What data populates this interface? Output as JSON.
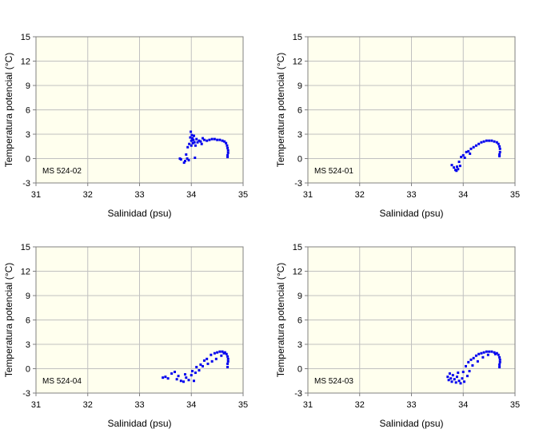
{
  "colors": {
    "plot_background": "#ffffee",
    "grid": "#c0c0c0",
    "axis": "#808080",
    "points": "#0000ee"
  },
  "chart_data": [
    {
      "type": "scatter",
      "station": "MS 524-02",
      "xlabel": "Salinidad (psu)",
      "ylabel": "Temperatura potencial (°C)",
      "xlim": [
        31,
        35
      ],
      "ylim": [
        -3,
        15
      ],
      "xticks": [
        "31",
        "32",
        "33",
        "34",
        "35"
      ],
      "yticks": [
        "-3",
        "0",
        "3",
        "6",
        "9",
        "12",
        "15"
      ],
      "grid": true,
      "series": [
        {
          "name": "MS 524-02",
          "points": [
            [
              33.78,
              0.0
            ],
            [
              33.8,
              -0.1
            ],
            [
              33.86,
              -0.5
            ],
            [
              33.88,
              -0.3
            ],
            [
              33.9,
              0.5
            ],
            [
              33.92,
              0.0
            ],
            [
              33.93,
              1.4
            ],
            [
              33.95,
              -0.2
            ],
            [
              33.96,
              1.8
            ],
            [
              33.98,
              2.6
            ],
            [
              33.99,
              3.3
            ],
            [
              34.0,
              2.2
            ],
            [
              34.0,
              1.6
            ],
            [
              34.01,
              2.9
            ],
            [
              34.02,
              2.5
            ],
            [
              34.03,
              1.9
            ],
            [
              34.04,
              2.3
            ],
            [
              34.05,
              2.8
            ],
            [
              34.06,
              2.0
            ],
            [
              34.07,
              0.1
            ],
            [
              34.08,
              1.6
            ],
            [
              34.1,
              2.4
            ],
            [
              34.12,
              2.0
            ],
            [
              34.15,
              2.2
            ],
            [
              34.18,
              2.1
            ],
            [
              34.2,
              1.8
            ],
            [
              34.22,
              2.5
            ],
            [
              34.25,
              2.3
            ],
            [
              34.3,
              2.2
            ],
            [
              34.35,
              2.3
            ],
            [
              34.4,
              2.4
            ],
            [
              34.45,
              2.4
            ],
            [
              34.5,
              2.3
            ],
            [
              34.55,
              2.3
            ],
            [
              34.6,
              2.2
            ],
            [
              34.64,
              2.1
            ],
            [
              34.67,
              1.9
            ],
            [
              34.69,
              1.6
            ],
            [
              34.7,
              1.3
            ],
            [
              34.71,
              1.0
            ],
            [
              34.71,
              0.7
            ],
            [
              34.7,
              0.4
            ],
            [
              34.7,
              0.2
            ]
          ]
        }
      ]
    },
    {
      "type": "scatter",
      "station": "MS 524-01",
      "xlabel": "Salinidad (psu)",
      "ylabel": "Temperatura potencial (°C)",
      "xlim": [
        31,
        35
      ],
      "ylim": [
        -3,
        15
      ],
      "xticks": [
        "31",
        "32",
        "33",
        "34",
        "35"
      ],
      "yticks": [
        "-3",
        "0",
        "3",
        "6",
        "9",
        "12",
        "15"
      ],
      "grid": true,
      "series": [
        {
          "name": "MS 524-01",
          "points": [
            [
              33.78,
              -0.8
            ],
            [
              33.82,
              -1.1
            ],
            [
              33.85,
              -1.4
            ],
            [
              33.87,
              -1.5
            ],
            [
              33.88,
              -1.0
            ],
            [
              33.9,
              -1.3
            ],
            [
              33.92,
              -0.4
            ],
            [
              33.94,
              -0.9
            ],
            [
              33.96,
              0.2
            ],
            [
              34.0,
              0.4
            ],
            [
              34.03,
              0.1
            ],
            [
              34.06,
              0.8
            ],
            [
              34.1,
              0.9
            ],
            [
              34.13,
              0.6
            ],
            [
              34.15,
              1.2
            ],
            [
              34.2,
              1.4
            ],
            [
              34.25,
              1.6
            ],
            [
              34.3,
              1.8
            ],
            [
              34.35,
              2.0
            ],
            [
              34.4,
              2.1
            ],
            [
              34.45,
              2.2
            ],
            [
              34.5,
              2.2
            ],
            [
              34.55,
              2.2
            ],
            [
              34.6,
              2.1
            ],
            [
              34.65,
              2.0
            ],
            [
              34.68,
              1.8
            ],
            [
              34.7,
              1.5
            ],
            [
              34.71,
              1.2
            ],
            [
              34.71,
              0.8
            ],
            [
              34.7,
              0.5
            ],
            [
              34.7,
              0.3
            ]
          ]
        }
      ]
    },
    {
      "type": "scatter",
      "station": "MS 524-04",
      "xlabel": "Salinidad (psu)",
      "ylabel": "Temperatura potencial (°C)",
      "xlim": [
        31,
        35
      ],
      "ylim": [
        -3,
        15
      ],
      "xticks": [
        "31",
        "32",
        "33",
        "34",
        "35"
      ],
      "yticks": [
        "-3",
        "0",
        "3",
        "6",
        "9",
        "12",
        "15"
      ],
      "grid": true,
      "series": [
        {
          "name": "MS 524-04",
          "points": [
            [
              33.45,
              -1.1
            ],
            [
              33.5,
              -1.0
            ],
            [
              33.55,
              -1.2
            ],
            [
              33.62,
              -0.6
            ],
            [
              33.68,
              -0.4
            ],
            [
              33.72,
              -1.3
            ],
            [
              33.75,
              -0.9
            ],
            [
              33.8,
              -1.5
            ],
            [
              33.85,
              -1.6
            ],
            [
              33.88,
              -0.7
            ],
            [
              33.9,
              -1.1
            ],
            [
              33.95,
              -1.4
            ],
            [
              34.0,
              -0.8
            ],
            [
              34.02,
              -0.3
            ],
            [
              34.05,
              -1.5
            ],
            [
              34.08,
              -0.5
            ],
            [
              34.1,
              0.2
            ],
            [
              34.15,
              -0.2
            ],
            [
              34.18,
              0.5
            ],
            [
              34.22,
              0.3
            ],
            [
              34.25,
              1.0
            ],
            [
              34.3,
              1.2
            ],
            [
              34.32,
              0.6
            ],
            [
              34.38,
              1.7
            ],
            [
              34.4,
              0.9
            ],
            [
              34.45,
              1.9
            ],
            [
              34.48,
              1.2
            ],
            [
              34.5,
              2.0
            ],
            [
              34.55,
              2.1
            ],
            [
              34.58,
              1.6
            ],
            [
              34.6,
              2.1
            ],
            [
              34.63,
              1.9
            ],
            [
              34.65,
              2.0
            ],
            [
              34.68,
              1.8
            ],
            [
              34.7,
              1.5
            ],
            [
              34.71,
              1.2
            ],
            [
              34.71,
              0.9
            ],
            [
              34.7,
              0.6
            ],
            [
              34.7,
              0.2
            ]
          ]
        }
      ]
    },
    {
      "type": "scatter",
      "station": "MS 524-03",
      "xlabel": "Salinidad (psu)",
      "ylabel": "Temperatura potencial (°C)",
      "xlim": [
        31,
        35
      ],
      "ylim": [
        -3,
        15
      ],
      "xticks": [
        "31",
        "32",
        "33",
        "34",
        "35"
      ],
      "yticks": [
        "-3",
        "0",
        "3",
        "6",
        "9",
        "12",
        "15"
      ],
      "grid": true,
      "series": [
        {
          "name": "MS 524-03",
          "points": [
            [
              33.7,
              -1.0
            ],
            [
              33.72,
              -1.4
            ],
            [
              33.74,
              -0.6
            ],
            [
              33.76,
              -1.2
            ],
            [
              33.78,
              -1.6
            ],
            [
              33.8,
              -0.8
            ],
            [
              33.83,
              -1.3
            ],
            [
              33.86,
              -1.7
            ],
            [
              33.88,
              -1.0
            ],
            [
              33.9,
              -0.5
            ],
            [
              33.92,
              -1.5
            ],
            [
              33.95,
              -1.8
            ],
            [
              33.98,
              -1.2
            ],
            [
              34.0,
              -0.4
            ],
            [
              34.02,
              -1.6
            ],
            [
              34.05,
              0.3
            ],
            [
              34.08,
              -0.9
            ],
            [
              34.1,
              0.8
            ],
            [
              34.12,
              -0.3
            ],
            [
              34.15,
              1.1
            ],
            [
              34.18,
              0.4
            ],
            [
              34.2,
              1.3
            ],
            [
              34.25,
              1.6
            ],
            [
              34.28,
              0.9
            ],
            [
              34.3,
              1.8
            ],
            [
              34.35,
              1.9
            ],
            [
              34.38,
              1.4
            ],
            [
              34.4,
              2.0
            ],
            [
              34.45,
              2.1
            ],
            [
              34.48,
              1.7
            ],
            [
              34.5,
              2.1
            ],
            [
              34.55,
              2.1
            ],
            [
              34.6,
              2.0
            ],
            [
              34.62,
              1.8
            ],
            [
              34.65,
              1.9
            ],
            [
              34.68,
              1.7
            ],
            [
              34.7,
              1.4
            ],
            [
              34.71,
              1.1
            ],
            [
              34.71,
              0.8
            ],
            [
              34.7,
              0.5
            ],
            [
              34.7,
              0.2
            ]
          ]
        }
      ]
    }
  ]
}
